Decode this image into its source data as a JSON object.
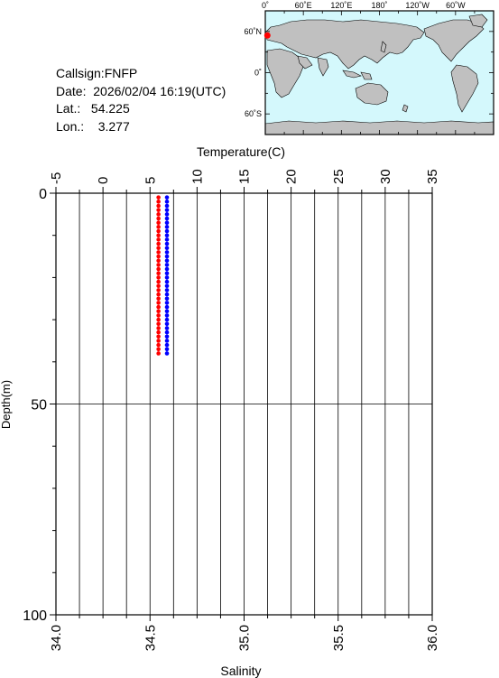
{
  "station": {
    "callsign_line": "Callsign:FNFP",
    "date_line": "Date:  2026/02/04 16:19(UTC)",
    "lat_line": "Lat.:   54.225",
    "lon_line": "Lon.:    3.277",
    "lat": 54.225,
    "lon": 3.277
  },
  "map": {
    "lon_labels": [
      "0˚",
      "60˚E",
      "120˚E",
      "180˚",
      "120˚W",
      "60˚W"
    ],
    "lon_values": [
      0,
      60,
      120,
      180,
      240,
      300
    ],
    "lat_labels": [
      "60˚N",
      "0˚",
      "60˚S"
    ],
    "lat_values": [
      60,
      0,
      -60
    ],
    "ocean_color": "#d4f8fc",
    "land_color": "#c0c0c0",
    "marker_color": "#ff0000"
  },
  "chart_data": {
    "type": "scatter",
    "top_axis": {
      "label": "Temperature(C)",
      "range": [
        -5,
        35
      ],
      "ticks": [
        "-5",
        "0",
        "5",
        "10",
        "15",
        "20",
        "25",
        "30",
        "35"
      ],
      "tick_values": [
        -5,
        0,
        5,
        10,
        15,
        20,
        25,
        30,
        35
      ]
    },
    "bottom_axis": {
      "label": "Salinity",
      "range": [
        34.0,
        36.0
      ],
      "ticks": [
        "34.0",
        "34.5",
        "35.0",
        "35.5",
        "36.0"
      ],
      "tick_values": [
        34.0,
        34.5,
        35.0,
        35.5,
        36.0
      ]
    },
    "y_axis": {
      "label": "Depth(m)",
      "range": [
        0,
        100
      ],
      "ticks": [
        "0",
        "50",
        "100"
      ],
      "tick_values": [
        0,
        50,
        100
      ],
      "inverted": true
    },
    "series": [
      {
        "axis": "top",
        "color": "#ff0000",
        "depth": [
          1,
          2,
          3,
          4,
          5,
          6,
          7,
          8,
          9,
          10,
          11,
          12,
          13,
          14,
          15,
          16,
          17,
          18,
          19,
          20,
          21,
          22,
          23,
          24,
          25,
          26,
          27,
          28,
          29,
          30,
          31,
          32,
          33,
          34,
          35,
          36,
          37,
          38
        ],
        "values": [
          5.9,
          5.9,
          5.9,
          5.9,
          5.9,
          5.9,
          5.9,
          5.9,
          5.9,
          5.9,
          5.9,
          5.9,
          5.9,
          5.9,
          5.9,
          5.9,
          5.9,
          5.9,
          5.9,
          5.9,
          5.9,
          5.9,
          5.9,
          5.9,
          5.9,
          5.9,
          5.9,
          5.9,
          5.9,
          5.9,
          5.9,
          5.9,
          5.9,
          5.9,
          5.9,
          5.9,
          5.9,
          5.9
        ]
      },
      {
        "axis": "bottom",
        "color": "#0000ff",
        "depth": [
          1,
          2,
          3,
          4,
          5,
          6,
          7,
          8,
          9,
          10,
          11,
          12,
          13,
          14,
          15,
          16,
          17,
          18,
          19,
          20,
          21,
          22,
          23,
          24,
          25,
          26,
          27,
          28,
          29,
          30,
          31,
          32,
          33,
          34,
          35,
          36,
          37,
          38
        ],
        "values": [
          34.59,
          34.59,
          34.59,
          34.59,
          34.59,
          34.59,
          34.59,
          34.59,
          34.59,
          34.59,
          34.59,
          34.59,
          34.59,
          34.59,
          34.59,
          34.59,
          34.59,
          34.59,
          34.59,
          34.59,
          34.59,
          34.59,
          34.59,
          34.59,
          34.59,
          34.59,
          34.59,
          34.59,
          34.59,
          34.59,
          34.59,
          34.59,
          34.59,
          34.59,
          34.59,
          34.59,
          34.59,
          34.59
        ]
      }
    ],
    "grid": true
  }
}
